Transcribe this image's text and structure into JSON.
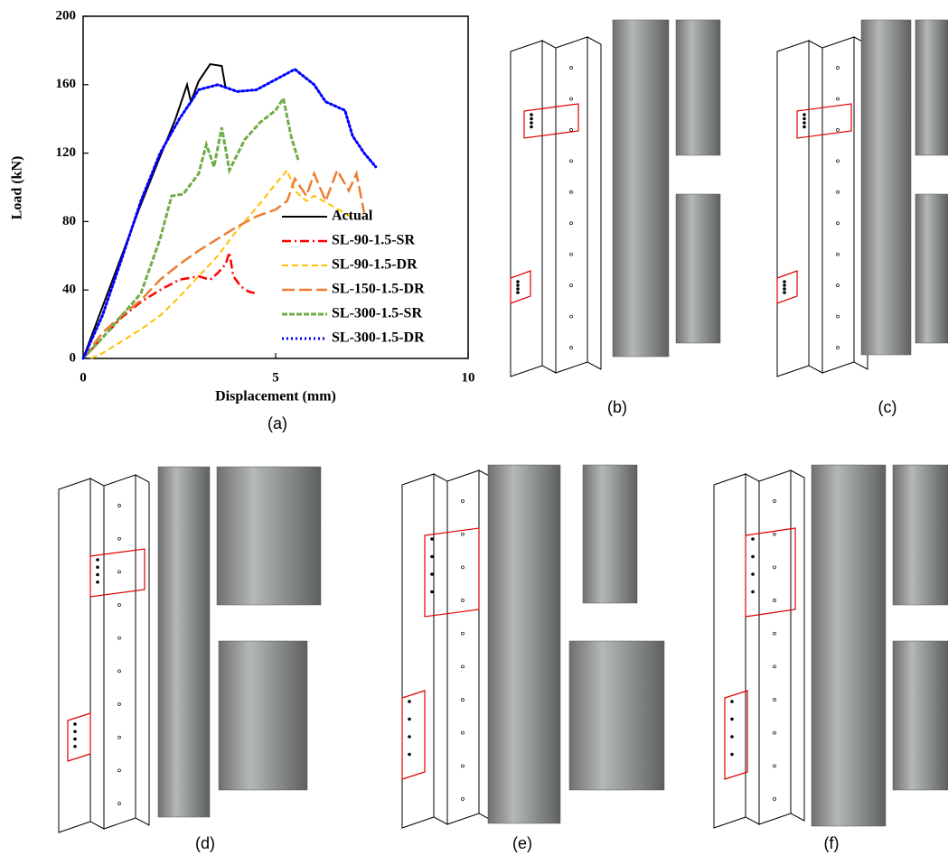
{
  "chart_data": {
    "type": "line",
    "xlabel": "Displacement (mm)",
    "ylabel": "Load (kN)",
    "xlim": [
      0,
      10
    ],
    "ylim": [
      0,
      200
    ],
    "xticks": [
      0,
      5,
      10
    ],
    "yticks": [
      0,
      40,
      80,
      120,
      160,
      200
    ],
    "legend": "lower right",
    "series": [
      {
        "name": "Actual",
        "color": "#000000",
        "style": "solid",
        "x": [
          0,
          0.5,
          1,
          1.5,
          2,
          2.4,
          2.7,
          2.8,
          3,
          3.3,
          3.6,
          3.7
        ],
        "values": [
          0,
          30,
          60,
          90,
          118,
          140,
          160,
          150,
          162,
          172,
          171,
          158
        ]
      },
      {
        "name": "SL-90-1.5-SR",
        "color": "#ff0000",
        "style": "dash-dot",
        "x": [
          0,
          0.5,
          1,
          1.5,
          2,
          2.5,
          3,
          3.3,
          3.5,
          3.7,
          3.8,
          3.9,
          4.1,
          4.3,
          4.5
        ],
        "values": [
          0,
          12,
          24,
          33,
          40,
          46,
          48,
          46,
          50,
          55,
          62,
          48,
          42,
          39,
          38
        ]
      },
      {
        "name": "SL-90-1.5-DR",
        "color": "#ffc000",
        "style": "dash",
        "x": [
          0.2,
          0.5,
          1,
          1.5,
          2,
          2.5,
          3,
          3.5,
          4,
          4.5,
          5,
          5.3,
          5.5,
          5.8,
          6,
          6.4,
          6.8,
          7
        ],
        "values": [
          0,
          3,
          10,
          17,
          25,
          36,
          48,
          60,
          75,
          88,
          102,
          110,
          98,
          92,
          95,
          90,
          85,
          82
        ]
      },
      {
        "name": "SL-150-1.5-DR",
        "color": "#ed7d31",
        "style": "long-dash",
        "x": [
          0,
          0.5,
          1,
          1.5,
          2,
          2.5,
          3,
          3.5,
          4,
          4.5,
          5,
          5.3,
          5.5,
          5.8,
          6,
          6.3,
          6.6,
          6.9,
          7.1,
          7.3
        ],
        "values": [
          0,
          15,
          25,
          34,
          46,
          55,
          63,
          70,
          77,
          83,
          87,
          92,
          105,
          95,
          108,
          92,
          110,
          98,
          108,
          85
        ]
      },
      {
        "name": "SL-300-1.5-SR",
        "color": "#70ad47",
        "style": "double",
        "x": [
          0,
          0.5,
          1,
          1.5,
          2,
          2.3,
          2.6,
          3,
          3.2,
          3.4,
          3.6,
          3.8,
          4.2,
          4.6,
          5,
          5.2,
          5.4,
          5.6
        ],
        "values": [
          0,
          12,
          25,
          38,
          70,
          95,
          96,
          108,
          125,
          112,
          135,
          110,
          128,
          138,
          145,
          152,
          130,
          115
        ]
      },
      {
        "name": "SL-300-1.5-DR",
        "color": "#0000ff",
        "style": "dot",
        "x": [
          0,
          0.5,
          1,
          1.5,
          2,
          2.5,
          2.8,
          3,
          3.5,
          4,
          4.5,
          5,
          5.5,
          6,
          6.3,
          6.8,
          7,
          7.3,
          7.6
        ],
        "values": [
          0,
          25,
          58,
          92,
          120,
          140,
          150,
          157,
          160,
          156,
          157,
          163,
          169,
          160,
          150,
          145,
          130,
          120,
          112
        ]
      }
    ]
  },
  "panel_labels": [
    "(a)",
    "(b)",
    "(c)",
    "(d)",
    "(e)",
    "(f)"
  ]
}
